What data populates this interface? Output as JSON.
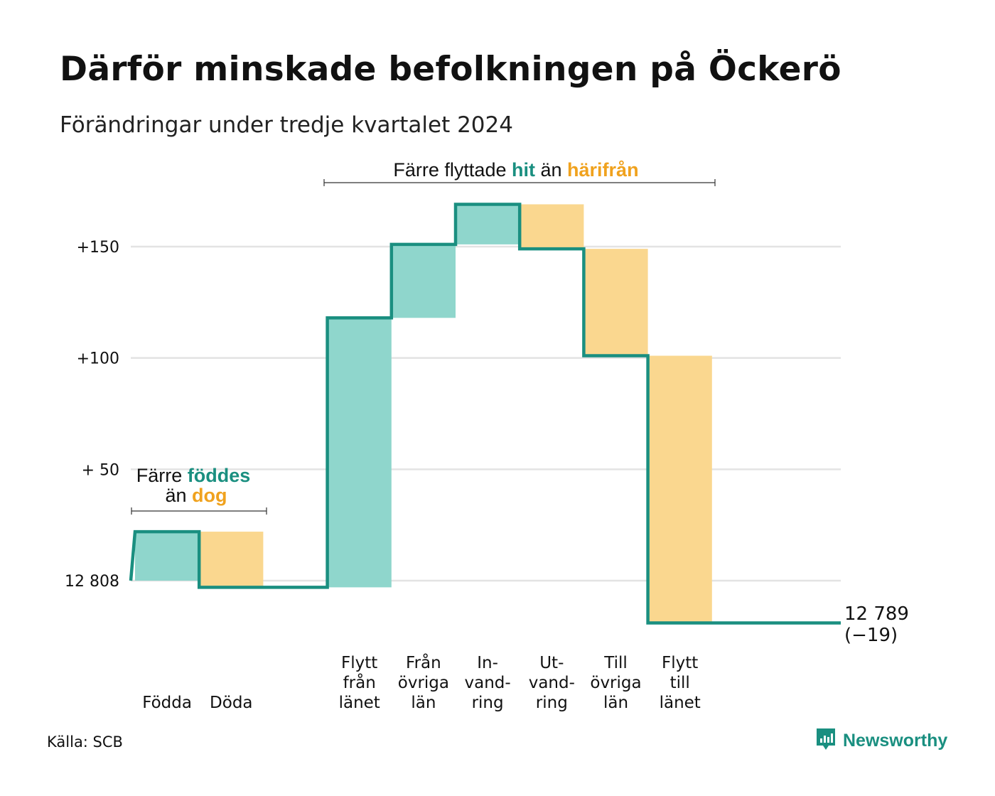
{
  "title": "Därför minskade befolkningen på Öckerö",
  "subtitle": "Förändringar under tredje kvartalet 2024",
  "source": "Källa: SCB",
  "brand": {
    "name": "Newsworthy",
    "icon": "newsworthy-logo-icon"
  },
  "colors": {
    "line": "#1a8f80",
    "increase_fill": "#8fd6cc",
    "decrease_fill": "#fad78f",
    "grid": "#e3e3e3",
    "accent_green": "#1a8f80",
    "accent_orange": "#f0a21e"
  },
  "annotations": {
    "births": {
      "line1_prefix": "Färre ",
      "line1_highlight": "föddes",
      "line2_prefix": "än ",
      "line2_highlight": "dog"
    },
    "migration": {
      "prefix": "Färre flyttade ",
      "highlight1": "hit",
      "middle": " än ",
      "highlight2": "härifrån"
    }
  },
  "end_label": {
    "value": "12 789",
    "change": "(−19)"
  },
  "chart_data": {
    "type": "waterfall",
    "title": "Därför minskade befolkningen på Öckerö",
    "subtitle": "Förändringar under tredje kvartalet 2024",
    "baseline": 12808,
    "end_value": 12789,
    "total_change": -19,
    "ylim": [
      -20,
      170
    ],
    "y_ticks": [
      {
        "value": 0,
        "label": "12 808"
      },
      {
        "value": 50,
        "label": "+ 50"
      },
      {
        "value": 100,
        "label": "+100"
      },
      {
        "value": 150,
        "label": "+150"
      }
    ],
    "grid": true,
    "steps": [
      {
        "label_lines": [
          "Födda"
        ],
        "change": 22,
        "kind": "increase"
      },
      {
        "label_lines": [
          "Döda"
        ],
        "change": -25,
        "kind": "decrease"
      },
      {
        "label_lines": [],
        "change": 0,
        "kind": "gap"
      },
      {
        "label_lines": [
          "Flytt",
          "från",
          "länet"
        ],
        "change": 121,
        "kind": "increase"
      },
      {
        "label_lines": [
          "Från",
          "övriga",
          "län"
        ],
        "change": 33,
        "kind": "increase"
      },
      {
        "label_lines": [
          "In-",
          "vand-",
          "ring"
        ],
        "change": 18,
        "kind": "increase"
      },
      {
        "label_lines": [
          "Ut-",
          "vand-",
          "ring"
        ],
        "change": -20,
        "kind": "decrease"
      },
      {
        "label_lines": [
          "Till",
          "övriga",
          "län"
        ],
        "change": -48,
        "kind": "decrease"
      },
      {
        "label_lines": [
          "Flytt",
          "till",
          "länet"
        ],
        "change": -120,
        "kind": "decrease"
      },
      {
        "label_lines": [],
        "change": 0,
        "kind": "gap"
      }
    ]
  }
}
